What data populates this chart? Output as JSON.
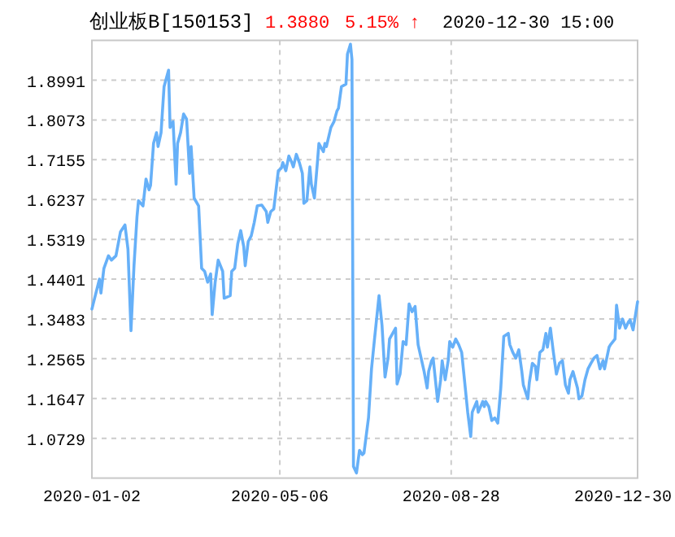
{
  "chart_data": {
    "type": "line",
    "title": "创业板B[150153]",
    "annotations": [
      "1.3880",
      "5.15% ↑",
      "2020-12-30 15:00"
    ],
    "xlim": [
      "2020-01-02",
      "2020-12-30"
    ],
    "xticks": [
      {
        "value": "2020-01-02",
        "label": "2020-01-02"
      },
      {
        "value": "2020-05-06",
        "label": "2020-05-06"
      },
      {
        "value": "2020-08-28",
        "label": "2020-08-28"
      },
      {
        "value": "2020-12-30",
        "label": "2020-12-30"
      }
    ],
    "ylim": [
      0.9811,
      1.9909
    ],
    "yticks": [
      1.0729,
      1.1647,
      1.2565,
      1.3483,
      1.4401,
      1.5319,
      1.6237,
      1.7155,
      1.8073,
      1.8991
    ],
    "grid": true,
    "marker": "none",
    "line_style": "solid",
    "x": [
      "2020-01-02",
      "2020-01-07",
      "2020-01-08",
      "2020-01-10",
      "2020-01-13",
      "2020-01-15",
      "2020-01-18",
      "2020-01-21",
      "2020-01-24",
      "2020-01-26",
      "2020-01-28",
      "2020-01-30",
      "2020-02-01",
      "2020-02-02",
      "2020-02-05",
      "2020-02-07",
      "2020-02-09",
      "2020-02-10",
      "2020-02-12",
      "2020-02-14",
      "2020-02-15",
      "2020-02-17",
      "2020-02-19",
      "2020-02-22",
      "2020-02-23",
      "2020-02-25",
      "2020-02-27",
      "2020-02-28",
      "2020-03-01",
      "2020-03-03",
      "2020-03-05",
      "2020-03-07",
      "2020-03-08",
      "2020-03-10",
      "2020-03-13",
      "2020-03-15",
      "2020-03-17",
      "2020-03-19",
      "2020-03-21",
      "2020-03-22",
      "2020-03-24",
      "2020-03-26",
      "2020-03-29",
      "2020-03-30",
      "2020-04-03",
      "2020-04-04",
      "2020-04-06",
      "2020-04-08",
      "2020-04-10",
      "2020-04-12",
      "2020-04-13",
      "2020-04-15",
      "2020-04-17",
      "2020-04-19",
      "2020-04-21",
      "2020-04-24",
      "2020-04-27",
      "2020-04-28",
      "2020-04-30",
      "2020-05-02",
      "2020-05-05",
      "2020-05-07",
      "2020-05-08",
      "2020-05-10",
      "2020-05-12",
      "2020-05-14",
      "2020-05-15",
      "2020-05-17",
      "2020-05-19",
      "2020-05-21",
      "2020-05-22",
      "2020-05-24",
      "2020-05-26",
      "2020-05-27",
      "2020-05-29",
      "2020-05-31",
      "2020-06-01",
      "2020-06-04",
      "2020-06-05",
      "2020-06-06",
      "2020-06-09",
      "2020-06-11",
      "2020-06-13",
      "2020-06-14",
      "2020-06-16",
      "2020-06-19",
      "2020-06-20",
      "2020-06-22",
      "2020-06-23",
      "2020-06-24",
      "2020-06-26",
      "2020-06-28",
      "2020-06-30",
      "2020-07-01",
      "2020-07-04",
      "2020-07-06",
      "2020-07-08",
      "2020-07-11",
      "2020-07-13",
      "2020-07-15",
      "2020-07-17",
      "2020-07-18",
      "2020-07-22",
      "2020-07-23",
      "2020-07-25",
      "2020-07-27",
      "2020-07-29",
      "2020-07-31",
      "2020-08-02",
      "2020-08-04",
      "2020-08-06",
      "2020-08-08",
      "2020-08-10",
      "2020-08-12",
      "2020-08-13",
      "2020-08-15",
      "2020-08-16",
      "2020-08-19",
      "2020-08-21",
      "2020-08-22",
      "2020-08-24",
      "2020-08-26",
      "2020-08-27",
      "2020-08-29",
      "2020-08-31",
      "2020-09-02",
      "2020-09-04",
      "2020-09-06",
      "2020-09-08",
      "2020-09-10",
      "2020-09-11",
      "2020-09-14",
      "2020-09-15",
      "2020-09-18",
      "2020-09-19",
      "2020-09-20",
      "2020-09-22",
      "2020-09-24",
      "2020-09-26",
      "2020-09-28",
      "2020-09-30",
      "2020-10-02",
      "2020-10-05",
      "2020-10-06",
      "2020-10-08",
      "2020-10-10",
      "2020-10-12",
      "2020-10-14",
      "2020-10-15",
      "2020-10-18",
      "2020-10-19",
      "2020-10-21",
      "2020-10-23",
      "2020-10-24",
      "2020-10-26",
      "2020-10-28",
      "2020-10-30",
      "2020-10-31",
      "2020-11-02",
      "2020-11-04",
      "2020-11-06",
      "2020-11-08",
      "2020-11-10",
      "2020-11-12",
      "2020-11-14",
      "2020-11-15",
      "2020-11-17",
      "2020-11-20",
      "2020-11-21",
      "2020-11-23",
      "2020-11-25",
      "2020-11-27",
      "2020-11-29",
      "2020-12-01",
      "2020-12-03",
      "2020-12-05",
      "2020-12-07",
      "2020-12-08",
      "2020-12-11",
      "2020-12-12",
      "2020-12-15",
      "2020-12-16",
      "2020-12-18",
      "2020-12-20",
      "2020-12-22",
      "2020-12-24",
      "2020-12-25",
      "2020-12-27",
      "2020-12-30"
    ],
    "series": [
      {
        "color": "#66b0f8",
        "values": [
          1.371,
          1.44,
          1.408,
          1.465,
          1.494,
          1.484,
          1.494,
          1.549,
          1.565,
          1.509,
          1.321,
          1.471,
          1.584,
          1.621,
          1.609,
          1.671,
          1.646,
          1.656,
          1.753,
          1.778,
          1.746,
          1.778,
          1.884,
          1.922,
          1.79,
          1.803,
          1.659,
          1.753,
          1.778,
          1.821,
          1.809,
          1.684,
          1.746,
          1.627,
          1.609,
          1.465,
          1.458,
          1.433,
          1.452,
          1.358,
          1.433,
          1.484,
          1.458,
          1.396,
          1.402,
          1.458,
          1.465,
          1.521,
          1.552,
          1.515,
          1.471,
          1.527,
          1.54,
          1.571,
          1.609,
          1.611,
          1.596,
          1.571,
          1.596,
          1.602,
          1.69,
          1.696,
          1.709,
          1.69,
          1.724,
          1.709,
          1.699,
          1.728,
          1.709,
          1.684,
          1.615,
          1.621,
          1.699,
          1.659,
          1.627,
          1.709,
          1.753,
          1.734,
          1.753,
          1.746,
          1.79,
          1.803,
          1.828,
          1.834,
          1.884,
          1.89,
          1.959,
          1.982,
          1.947,
          1.008,
          0.993,
          1.045,
          1.035,
          1.039,
          1.12,
          1.233,
          1.302,
          1.402,
          1.333,
          1.214,
          1.258,
          1.302,
          1.327,
          1.198,
          1.221,
          1.296,
          1.289,
          1.383,
          1.365,
          1.377,
          1.289,
          1.258,
          1.227,
          1.189,
          1.227,
          1.252,
          1.258,
          1.158,
          1.208,
          1.252,
          1.208,
          1.252,
          1.296,
          1.283,
          1.302,
          1.289,
          1.271,
          1.202,
          1.133,
          1.077,
          1.133,
          1.158,
          1.133,
          1.158,
          1.146,
          1.158,
          1.146,
          1.114,
          1.12,
          1.108,
          1.189,
          1.308,
          1.315,
          1.289,
          1.271,
          1.258,
          1.277,
          1.227,
          1.196,
          1.164,
          1.202,
          1.246,
          1.239,
          1.208,
          1.271,
          1.277,
          1.315,
          1.283,
          1.327,
          1.271,
          1.221,
          1.246,
          1.252,
          1.196,
          1.177,
          1.208,
          1.227,
          1.189,
          1.164,
          1.171,
          1.208,
          1.233,
          1.246,
          1.258,
          1.264,
          1.233,
          1.252,
          1.233,
          1.283,
          1.289,
          1.302,
          1.38,
          1.327,
          1.348,
          1.327,
          1.342,
          1.346,
          1.323,
          1.388
        ]
      }
    ]
  }
}
